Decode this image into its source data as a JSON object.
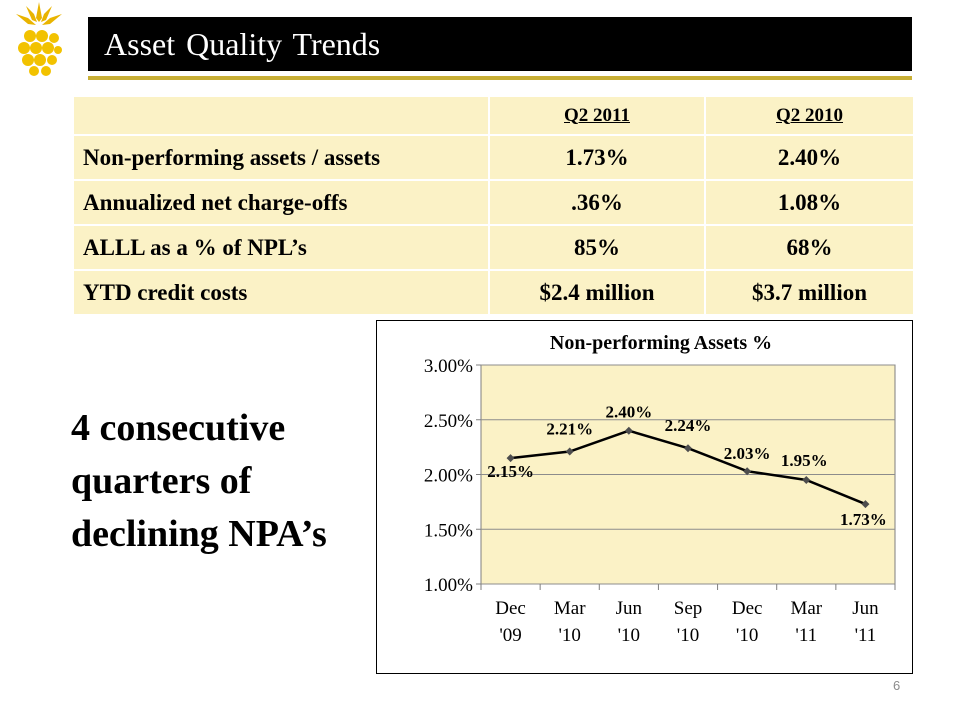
{
  "header": {
    "title": "Asset Quality Trends",
    "logo_icon": "pineapple-icon"
  },
  "colors": {
    "title_bar": "#000000",
    "accent_rule": "#c9b037",
    "table_fill": "#fbf2c6",
    "plot_fill": "#fbf2c6",
    "line": "#000000",
    "marker": "#4d4d4d"
  },
  "table": {
    "columns": [
      "",
      "Q2 2011",
      "Q2 2010"
    ],
    "rows": [
      {
        "label": "Non-performing  assets / assets",
        "q2_2011": "1.73%",
        "q2_2010": "2.40%"
      },
      {
        "label": "Annualized  net charge-offs",
        "q2_2011": ".36%",
        "q2_2010": "1.08%"
      },
      {
        "label": "ALLL as a % of NPL’s",
        "q2_2011": "85%",
        "q2_2010": "68%"
      },
      {
        "label": "YTD credit costs",
        "q2_2011": "$2.4 million",
        "q2_2010": "$3.7 million"
      }
    ]
  },
  "callout": {
    "lines": [
      "4 consecutive",
      "quarters of",
      "declining NPA’s"
    ]
  },
  "chart_data": {
    "type": "line",
    "title": "Non-performing Assets %",
    "categories": [
      [
        "Dec",
        "'09"
      ],
      [
        "Mar",
        "'10"
      ],
      [
        "Jun",
        "'10"
      ],
      [
        "Sep",
        "'10"
      ],
      [
        "Dec",
        "'10"
      ],
      [
        "Mar",
        "'11"
      ],
      [
        "Jun",
        "'11"
      ]
    ],
    "series": [
      {
        "values": [
          2.15,
          2.21,
          2.4,
          2.24,
          2.03,
          1.95,
          1.73
        ]
      }
    ],
    "data_labels": [
      "2.15%",
      "2.21%",
      "2.40%",
      "2.24%",
      "2.03%",
      "1.95%",
      "1.73%"
    ],
    "ylim": [
      1.0,
      3.0
    ],
    "yticks": [
      1.0,
      1.5,
      2.0,
      2.5,
      3.0
    ],
    "ytick_labels": [
      "1.00%",
      "1.50%",
      "2.00%",
      "2.50%",
      "3.00%"
    ],
    "grid": true,
    "legend": false
  },
  "footer": {
    "page_number": "6"
  }
}
